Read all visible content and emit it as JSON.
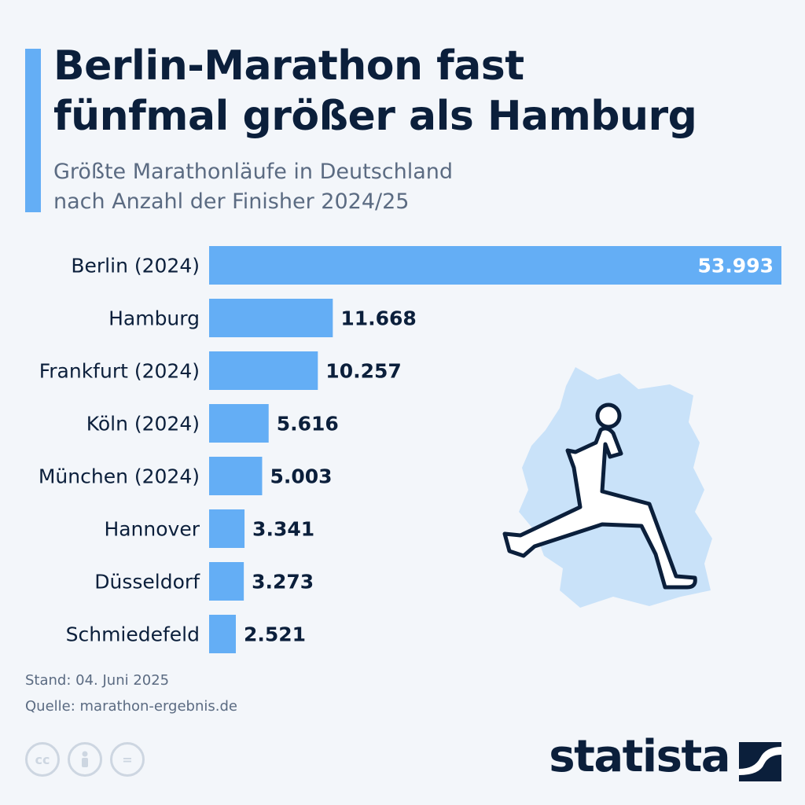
{
  "header": {
    "title_line1": "Berlin-Marathon fast",
    "title_line2": "fünfmal größer als Hamburg",
    "subtitle_line1": "Größte Marathonläufe in Deutschland",
    "subtitle_line2": "nach Anzahl der Finisher 2024/25"
  },
  "chart_data": {
    "type": "bar",
    "orientation": "horizontal",
    "categories": [
      "Berlin (2024)",
      "Hamburg",
      "Frankfurt (2024)",
      "Köln (2024)",
      "München (2024)",
      "Hannover",
      "Düsseldorf",
      "Schmiedefeld"
    ],
    "values": [
      53993,
      11668,
      10257,
      5616,
      5003,
      3341,
      3273,
      2521
    ],
    "value_labels": [
      "53.993",
      "11.668",
      "10.257",
      "5.616",
      "5.003",
      "3.341",
      "3.273",
      "2.521"
    ],
    "bar_color": "#64aef5",
    "grid": false
  },
  "footer": {
    "date": "Stand: 04. Juni 2025",
    "source": "Quelle: marathon-ergebnis.de",
    "brand": "statista"
  },
  "illustration": {
    "icon": "runner-over-germany-map-icon"
  },
  "colors": {
    "title": "#0b1f3b",
    "subtitle": "#5b6b82",
    "bar": "#64aef5",
    "map": "#c9e2f9",
    "background": "#f3f6fa"
  }
}
